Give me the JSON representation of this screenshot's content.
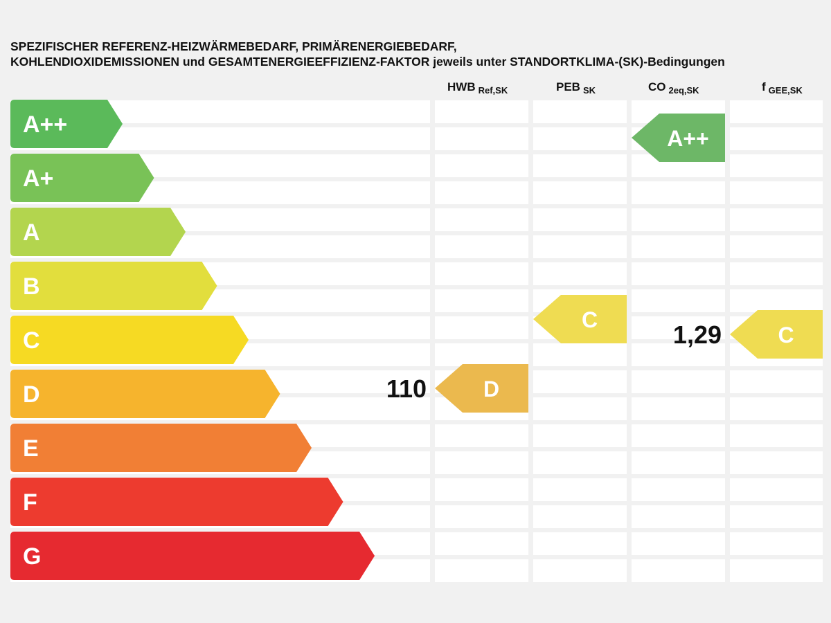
{
  "chart_data": {
    "type": "energy-rating-chart",
    "title_lines": [
      "SPEZIFISCHER REFERENZ-HEIZWÄRMEBEDARF, PRIMÄRENERGIEBEDARF,",
      "KOHLENDIOXIDEMISSIONEN und GESAMTENERGIEEFFIZIENZ-FAKTOR jeweils unter STANDORTKLIMA-(SK)-Bedingungen"
    ],
    "classes": [
      {
        "label": "A++",
        "color": "#5bba5a"
      },
      {
        "label": "A+",
        "color": "#79c257"
      },
      {
        "label": "A",
        "color": "#b3d54e"
      },
      {
        "label": "B",
        "color": "#e2de3d"
      },
      {
        "label": "C",
        "color": "#f6da23"
      },
      {
        "label": "D",
        "color": "#f6b42d"
      },
      {
        "label": "E",
        "color": "#f17f35"
      },
      {
        "label": "F",
        "color": "#ed3b2f"
      },
      {
        "label": "G",
        "color": "#e62a30"
      }
    ],
    "columns": [
      {
        "name": "HWB",
        "sub": "Ref,SK",
        "rating": "D",
        "value": "110",
        "marker_color": "#ebb94e"
      },
      {
        "name": "PEB",
        "sub": "SK",
        "rating": "C",
        "value": "",
        "marker_color": "#efdc52"
      },
      {
        "name": "CO",
        "sub": "2eq,SK",
        "rating": "A++",
        "value": "",
        "marker_color": "#6db767"
      },
      {
        "name": "f",
        "sub": "GEE,SK",
        "rating": "C",
        "value": "1,29",
        "marker_color": "#efdc52"
      }
    ]
  }
}
